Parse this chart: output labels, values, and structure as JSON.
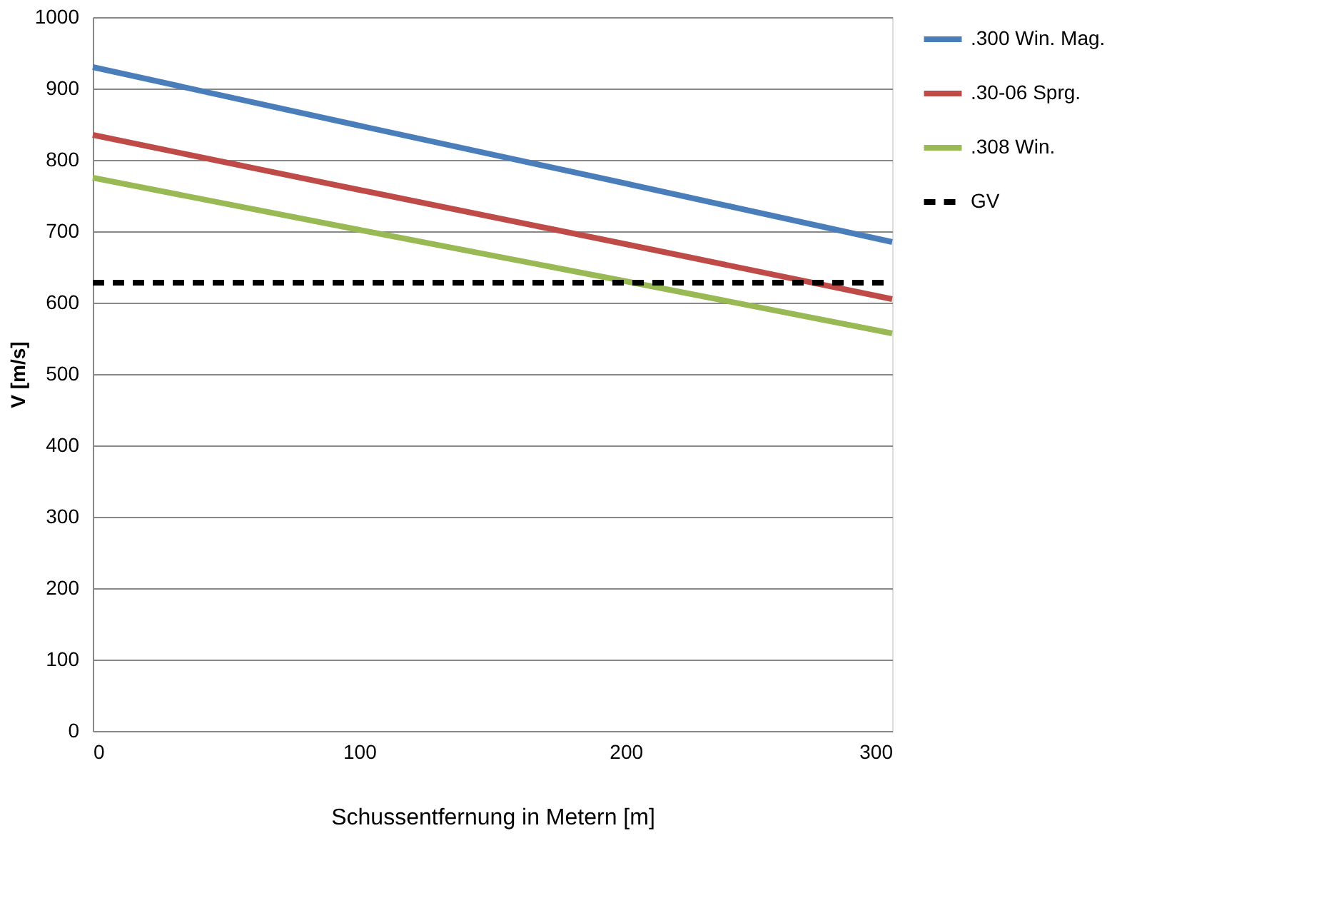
{
  "chart_data": {
    "type": "line",
    "xlabel": "Schussentfernung in Metern [m]",
    "ylabel": "V [m/s]",
    "x": [
      0,
      100,
      200,
      300
    ],
    "xlim": [
      0,
      300
    ],
    "xticks": [
      0,
      100,
      200,
      300
    ],
    "ylim": [
      0,
      1000
    ],
    "yticks": [
      0,
      100,
      200,
      300,
      400,
      500,
      600,
      700,
      800,
      900,
      1000
    ],
    "grid": "y",
    "legend": "right",
    "marker": "none",
    "series": [
      {
        "name": ".300 Win. Mag.",
        "color": "#4a7ebb",
        "values": [
          930,
          848,
          767,
          685
        ],
        "line_style": "solid"
      },
      {
        "name": ".30-06 Sprg.",
        "color": "#be4b48",
        "values": [
          835,
          758,
          682,
          605
        ],
        "line_style": "solid"
      },
      {
        "name": ".308 Win.",
        "color": "#98b954",
        "values": [
          775,
          702,
          630,
          557
        ],
        "line_style": "solid"
      },
      {
        "name": "GV",
        "color": "#000000",
        "values": [
          628,
          628,
          628,
          628
        ],
        "line_style": "dashed"
      }
    ]
  }
}
